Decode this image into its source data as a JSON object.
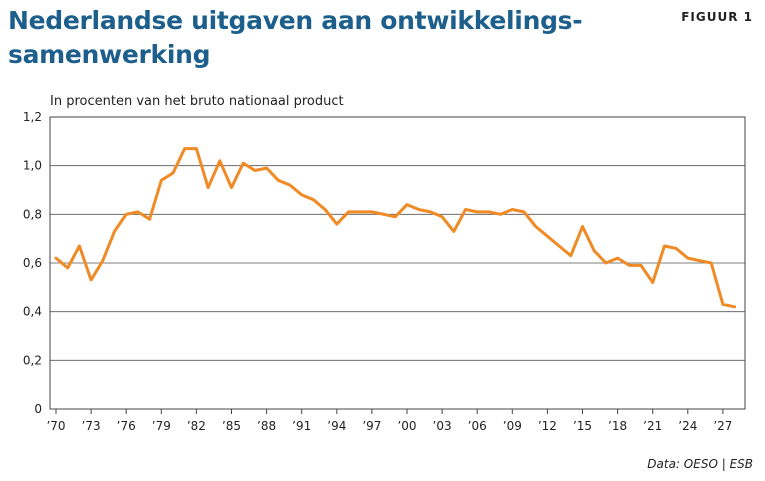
{
  "figure_label": "FIGUUR 1",
  "chart_data": {
    "type": "line",
    "title": "Nederlandse uitgaven aan ontwikkelings-samenwerking",
    "subtitle": "In procenten van het bruto nationaal product",
    "source": "Data: OESO | ESB",
    "ylim": [
      0,
      1.2
    ],
    "y_ticks": [
      0,
      0.2,
      0.4,
      0.6,
      0.8,
      1.0,
      1.2
    ],
    "y_tick_labels": [
      "0",
      "0,2",
      "0,4",
      "0,6",
      "0,8",
      "1,0",
      "1,2"
    ],
    "xlim": [
      1970,
      2028
    ],
    "x_ticks": [
      1970,
      1973,
      1976,
      1979,
      1982,
      1985,
      1988,
      1991,
      1994,
      1997,
      2000,
      2003,
      2006,
      2009,
      2012,
      2015,
      2018,
      2021,
      2024,
      2027
    ],
    "x_tick_labels": [
      "’70",
      "’73",
      "’76",
      "’79",
      "’82",
      "’85",
      "’88",
      "’91",
      "’94",
      "’97",
      "’00",
      "’03",
      "’06",
      "’09",
      "’12",
      "’15",
      "’18",
      "’21",
      "’24",
      "’27"
    ],
    "grid": true,
    "line_color": "#f08a24",
    "series": [
      {
        "x": [
          1970,
          1971,
          1972,
          1973,
          1974,
          1975,
          1976,
          1977,
          1978,
          1979,
          1980,
          1981,
          1982,
          1983,
          1984,
          1985,
          1986,
          1987,
          1988,
          1989,
          1990,
          1991,
          1992,
          1993,
          1994,
          1995,
          1996,
          1997,
          1998,
          1999,
          2000,
          2001,
          2002,
          2003,
          2004,
          2005,
          2006,
          2007,
          2008,
          2009,
          2010,
          2011,
          2012,
          2013,
          2014,
          2015,
          2016,
          2017,
          2018,
          2019,
          2020,
          2021,
          2022,
          2023,
          2024,
          2025,
          2026,
          2027,
          2028
        ],
        "y": [
          0.62,
          0.58,
          0.67,
          0.53,
          0.61,
          0.73,
          0.8,
          0.81,
          0.78,
          0.94,
          0.97,
          1.07,
          1.07,
          0.91,
          1.02,
          0.91,
          1.01,
          0.98,
          0.99,
          0.94,
          0.92,
          0.88,
          0.86,
          0.82,
          0.76,
          0.81,
          0.81,
          0.81,
          0.8,
          0.79,
          0.84,
          0.82,
          0.81,
          0.79,
          0.73,
          0.82,
          0.81,
          0.81,
          0.8,
          0.82,
          0.81,
          0.75,
          0.71,
          0.67,
          0.63,
          0.75,
          0.65,
          0.6,
          0.62,
          0.59,
          0.59,
          0.52,
          0.67,
          0.66,
          0.62,
          0.61,
          0.6,
          0.43,
          0.42
        ]
      }
    ]
  }
}
